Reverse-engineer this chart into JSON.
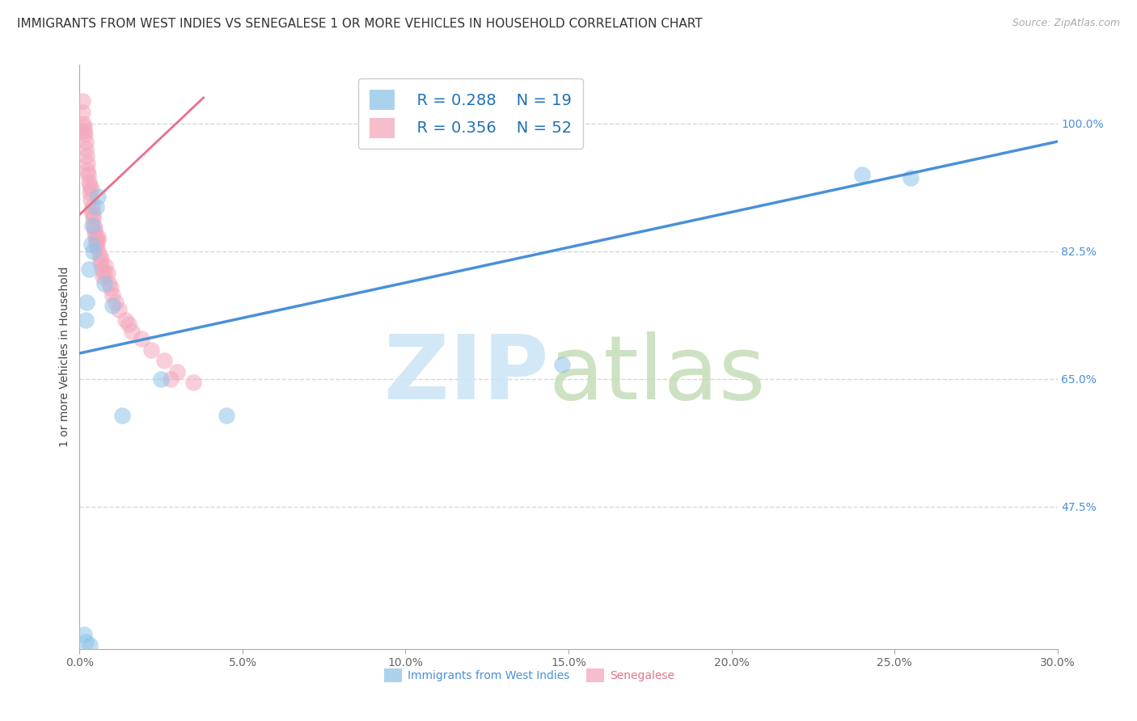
{
  "title": "IMMIGRANTS FROM WEST INDIES VS SENEGALESE 1 OR MORE VEHICLES IN HOUSEHOLD CORRELATION CHART",
  "source": "Source: ZipAtlas.com",
  "xlabel_blue": "Immigrants from West Indies",
  "xlabel_pink": "Senegalese",
  "ylabel": "1 or more Vehicles in Household",
  "xlim": [
    0.0,
    30.0
  ],
  "ylim": [
    28.0,
    108.0
  ],
  "right_yticks": [
    47.5,
    65.0,
    82.5,
    100.0
  ],
  "xticks": [
    0.0,
    5.0,
    10.0,
    15.0,
    20.0,
    25.0,
    30.0
  ],
  "r_blue": 0.288,
  "n_blue": 19,
  "r_pink": 0.356,
  "n_pink": 52,
  "blue_color": "#8fc4e8",
  "pink_color": "#f4a7bc",
  "blue_line_color": "#4a90d9",
  "pink_line_color": "#e8708a",
  "background_color": "#ffffff",
  "grid_color": "#cccccc",
  "blue_scatter_x": [
    0.18,
    0.22,
    0.28,
    0.35,
    0.38,
    0.42,
    0.5,
    0.55,
    0.75,
    1.0,
    1.3,
    2.5,
    4.5,
    14.8,
    24.0,
    25.5,
    0.15,
    0.2,
    0.3
  ],
  "blue_scatter_y": [
    73.0,
    75.5,
    80.0,
    83.5,
    86.0,
    82.5,
    88.5,
    90.0,
    78.0,
    75.0,
    60.0,
    65.0,
    60.0,
    67.0,
    93.0,
    92.5,
    30.0,
    29.0,
    28.5
  ],
  "pink_scatter_x": [
    0.08,
    0.1,
    0.12,
    0.14,
    0.16,
    0.18,
    0.2,
    0.22,
    0.24,
    0.26,
    0.28,
    0.3,
    0.32,
    0.34,
    0.36,
    0.38,
    0.4,
    0.42,
    0.44,
    0.46,
    0.48,
    0.5,
    0.52,
    0.54,
    0.56,
    0.6,
    0.64,
    0.68,
    0.72,
    0.78,
    0.85,
    0.9,
    0.95,
    1.0,
    1.1,
    1.2,
    1.4,
    1.6,
    1.9,
    2.2,
    2.6,
    3.0,
    3.5,
    0.15,
    0.25,
    0.35,
    0.45,
    0.55,
    0.65,
    0.75,
    2.8,
    1.5
  ],
  "pink_scatter_y": [
    103.0,
    101.5,
    100.0,
    99.5,
    98.5,
    97.5,
    96.5,
    95.5,
    94.5,
    93.0,
    92.0,
    91.5,
    90.5,
    89.5,
    91.0,
    88.5,
    87.5,
    87.0,
    86.0,
    85.0,
    84.5,
    84.0,
    83.5,
    83.0,
    84.5,
    82.0,
    81.0,
    80.0,
    79.0,
    80.5,
    79.5,
    78.0,
    77.5,
    76.5,
    75.5,
    74.5,
    73.0,
    71.5,
    70.5,
    69.0,
    67.5,
    66.0,
    64.5,
    99.0,
    93.5,
    88.0,
    85.5,
    84.0,
    81.5,
    79.5,
    65.0,
    72.5
  ],
  "blue_line_x": [
    0.0,
    30.0
  ],
  "blue_line_y": [
    68.5,
    97.5
  ],
  "pink_line_x": [
    0.0,
    3.8
  ],
  "pink_line_y": [
    87.5,
    103.5
  ],
  "watermark_zip": "ZIP",
  "watermark_atlas": "atlas"
}
